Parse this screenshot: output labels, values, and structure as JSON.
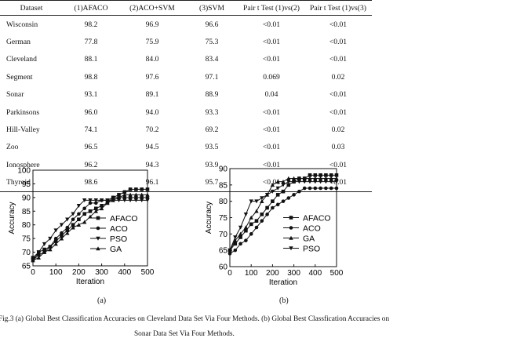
{
  "table": {
    "headers": [
      "Dataset",
      "(1)AFACO",
      "(2)ACO+SVM",
      "(3)SVM",
      "Pair t Test (1)vs(2)",
      "Pair t Test (1)vs(3)"
    ],
    "rows": [
      [
        "Wisconsin",
        "98.2",
        "96.9",
        "96.6",
        "<0.01",
        "<0.01"
      ],
      [
        "German",
        "77.8",
        "75.9",
        "75.3",
        "<0.01",
        "<0.01"
      ],
      [
        "Cleveland",
        "88.1",
        "84.0",
        "83.4",
        "<0.01",
        "<0.01"
      ],
      [
        "Segment",
        "98.8",
        "97.6",
        "97.1",
        "0.069",
        "0.02"
      ],
      [
        "Sonar",
        "93.1",
        "89.1",
        "88.9",
        "0.04",
        "<0.01"
      ],
      [
        "Parkinsons",
        "96.0",
        "94.0",
        "93.3",
        "<0.01",
        "<0.01"
      ],
      [
        "Hill-Valley",
        "74.1",
        "70.2",
        "69.2",
        "<0.01",
        "0.02"
      ],
      [
        "Zoo",
        "96.5",
        "94.5",
        "93.5",
        "<0.01",
        "0.03"
      ],
      [
        "Ionosphere",
        "96.2",
        "94.3",
        "93.9",
        "<0.01",
        "<0.01"
      ],
      [
        "Thyroid",
        "98.6",
        "96.1",
        "95.7",
        "<0.01",
        "<0.01"
      ]
    ]
  },
  "chart_data": [
    {
      "type": "line",
      "xlabel": "Iteration",
      "ylabel": "Accuracy",
      "xlim": [
        0,
        500
      ],
      "ylim": [
        65,
        100
      ],
      "xticks": [
        0,
        100,
        200,
        300,
        400,
        500
      ],
      "yticks": [
        65,
        70,
        75,
        80,
        85,
        90,
        95,
        100
      ],
      "legend_position": "center-right",
      "x": [
        0,
        25,
        50,
        75,
        100,
        125,
        150,
        175,
        200,
        225,
        250,
        275,
        300,
        325,
        350,
        375,
        400,
        425,
        450,
        475,
        500
      ],
      "series": [
        {
          "name": "AFACO",
          "marker": "square",
          "values": [
            68,
            70,
            71,
            72,
            74,
            76,
            78,
            80,
            82,
            84,
            85,
            86,
            87,
            88,
            90,
            91,
            92,
            93,
            93,
            93,
            93
          ]
        },
        {
          "name": "ACO",
          "marker": "circle",
          "values": [
            67,
            69,
            70,
            72,
            75,
            77,
            79,
            82,
            84,
            86,
            88,
            88,
            89,
            89,
            90,
            90,
            90,
            90,
            90,
            90,
            90
          ]
        },
        {
          "name": "PSO",
          "marker": "triangle-down",
          "values": [
            67,
            70,
            73,
            75,
            78,
            80,
            82,
            84,
            87,
            89,
            89,
            89,
            89,
            89,
            89,
            89,
            89,
            89,
            89,
            89,
            89
          ]
        },
        {
          "name": "GA",
          "marker": "triangle-up",
          "values": [
            67,
            68,
            70,
            71,
            73,
            75,
            77,
            79,
            80,
            81,
            83,
            85,
            86,
            88,
            89,
            90,
            91,
            91,
            91,
            91,
            91
          ]
        }
      ]
    },
    {
      "type": "line",
      "xlabel": "Iteration",
      "ylabel": "Accuracy",
      "xlim": [
        0,
        500
      ],
      "ylim": [
        60,
        90
      ],
      "xticks": [
        0,
        100,
        200,
        300,
        400,
        500
      ],
      "yticks": [
        60,
        65,
        70,
        75,
        80,
        85,
        90
      ],
      "legend_position": "center-right",
      "x": [
        0,
        25,
        50,
        75,
        100,
        125,
        150,
        175,
        200,
        225,
        250,
        275,
        300,
        325,
        350,
        375,
        400,
        425,
        450,
        475,
        500
      ],
      "series": [
        {
          "name": "AFACO",
          "marker": "square",
          "values": [
            65,
            67,
            69,
            71,
            73,
            74,
            76,
            78,
            80,
            82,
            83,
            85,
            86,
            87,
            87,
            88,
            88,
            88,
            88,
            88,
            88
          ]
        },
        {
          "name": "ACO",
          "marker": "circle",
          "values": [
            64,
            65,
            67,
            68,
            70,
            72,
            74,
            76,
            78,
            79,
            80,
            81,
            82,
            83,
            84,
            84,
            84,
            84,
            84,
            84,
            84
          ]
        },
        {
          "name": "GA",
          "marker": "triangle-up",
          "values": [
            65,
            68,
            70,
            72,
            75,
            77,
            80,
            82,
            85,
            86,
            86,
            87,
            87,
            87,
            87,
            87,
            87,
            87,
            87,
            87,
            87
          ]
        },
        {
          "name": "PSO",
          "marker": "triangle-down",
          "values": [
            65,
            69,
            72,
            76,
            80,
            80,
            81,
            82,
            83,
            84,
            85,
            86,
            86,
            86,
            86,
            86,
            86,
            86,
            86,
            86,
            86
          ]
        }
      ]
    }
  ],
  "figure": {
    "sub_a": "(a)",
    "sub_b": "(b)",
    "caption_line1": "Fig.3 (a) Global Best Classification Accuracies on Cleveland Data Set Via Four Methods. (b) Global Best Classfication Accuracies on",
    "caption_line2": "Sonar Data Set Via Four Methods."
  }
}
